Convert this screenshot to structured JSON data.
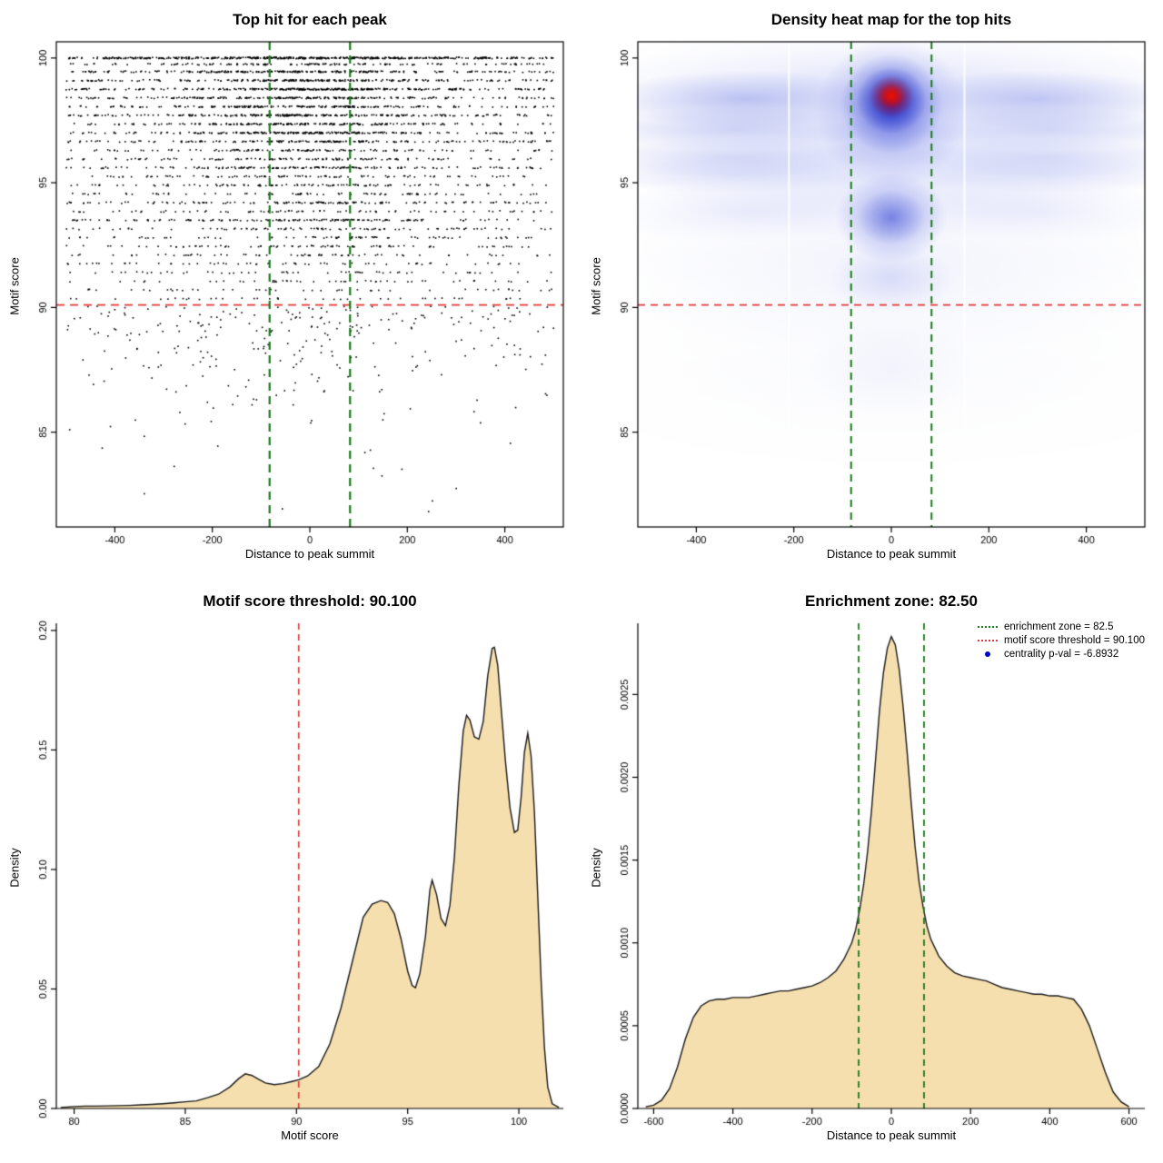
{
  "colors": {
    "background": "#ffffff",
    "point_black": "#000000",
    "red_threshold": "#e23b3b",
    "green_zone": "#1b7a1b",
    "blue_point": "#0000cd",
    "density_fill": "#f6dfae",
    "density_stroke": "#1a1a1a"
  },
  "chart_data": [
    {
      "type": "scatter",
      "title": "Top hit for each peak",
      "xlabel": "Distance to peak summit",
      "ylabel": "Motif score",
      "xlim": [
        -520,
        520
      ],
      "ylim": [
        81.2,
        100.65
      ],
      "xticks": [
        -400,
        -200,
        0,
        200,
        400
      ],
      "xtick_labels": [
        "-400",
        "-200",
        "0",
        "200",
        "400"
      ],
      "yticks": [
        85,
        90,
        95,
        100
      ],
      "ytick_labels": [
        "85",
        "90",
        "95",
        "100"
      ],
      "box": true,
      "seed": 11,
      "x_data_range": [
        -500,
        500
      ],
      "ref_lines": [
        {
          "axis": "y",
          "value": 90.1,
          "color": "red_threshold",
          "dash": [
            9,
            6
          ],
          "width": 1.9
        },
        {
          "axis": "x",
          "value": -82.5,
          "color": "green_zone",
          "dash": [
            9,
            6
          ],
          "width": 2.2
        },
        {
          "axis": "x",
          "value": 82.5,
          "color": "green_zone",
          "dash": [
            9,
            6
          ],
          "width": 2.2
        }
      ],
      "bands_columns": [
        "motif_score",
        "n_points",
        "center_weight"
      ],
      "bands": [
        [
          100.0,
          500,
          0.3
        ],
        [
          99.75,
          140,
          0.4
        ],
        [
          99.45,
          260,
          0.45
        ],
        [
          99.1,
          240,
          0.5
        ],
        [
          98.75,
          300,
          0.5
        ],
        [
          98.4,
          230,
          0.5
        ],
        [
          98.05,
          210,
          0.5
        ],
        [
          97.7,
          260,
          0.5
        ],
        [
          97.35,
          200,
          0.5
        ],
        [
          97.0,
          240,
          0.5
        ],
        [
          96.65,
          190,
          0.45
        ],
        [
          96.3,
          130,
          0.45
        ],
        [
          95.95,
          120,
          0.45
        ],
        [
          95.6,
          160,
          0.45
        ],
        [
          95.25,
          100,
          0.4
        ],
        [
          94.9,
          110,
          0.4
        ],
        [
          94.55,
          80,
          0.4
        ],
        [
          94.2,
          140,
          0.45
        ],
        [
          93.85,
          80,
          0.4
        ],
        [
          93.5,
          150,
          0.5
        ],
        [
          93.15,
          90,
          0.4
        ],
        [
          92.8,
          75,
          0.35
        ],
        [
          92.45,
          85,
          0.35
        ],
        [
          92.1,
          65,
          0.35
        ],
        [
          91.75,
          60,
          0.3
        ],
        [
          91.4,
          55,
          0.3
        ],
        [
          91.05,
          50,
          0.3
        ],
        [
          90.7,
          45,
          0.3
        ],
        [
          90.35,
          40,
          0.3
        ]
      ],
      "below_threshold": {
        "n_points": 300,
        "exp_decay": 1.9,
        "min_score": 81.6,
        "center_weight": 0.25
      }
    },
    {
      "type": "heatmap",
      "title": "Density heat map for the top hits",
      "xlabel": "Distance to peak summit",
      "ylabel": "Motif score",
      "xlim": [
        -520,
        520
      ],
      "ylim": [
        81.2,
        100.65
      ],
      "xticks": [
        -400,
        -200,
        0,
        200,
        400
      ],
      "xtick_labels": [
        "-400",
        "-200",
        "0",
        "200",
        "400"
      ],
      "yticks": [
        85,
        90,
        95,
        100
      ],
      "ytick_labels": [
        "85",
        "90",
        "95",
        "100"
      ],
      "box": true,
      "ref_lines": [
        {
          "axis": "y",
          "value": 90.1,
          "color": "red_threshold",
          "dash": [
            8,
            6
          ],
          "width": 1.6
        },
        {
          "axis": "x",
          "value": -82.5,
          "color": "green_zone",
          "dash": [
            8,
            6
          ],
          "width": 2.0
        },
        {
          "axis": "x",
          "value": 82.5,
          "color": "green_zone",
          "dash": [
            8,
            6
          ],
          "width": 2.0
        }
      ],
      "white_gap_lines_x": [
        -210,
        150
      ],
      "hotspot": {
        "x": 0,
        "y": 98.45,
        "note": "maximum density (red core)"
      },
      "blobs_columns": [
        "x",
        "y",
        "rx",
        "ry",
        "color",
        "alpha"
      ],
      "blobs": [
        [
          0,
          97.6,
          640,
          5.0,
          "#5b6ee8",
          0.1
        ],
        [
          0,
          96.6,
          640,
          3.2,
          "#5b6ee8",
          0.08
        ],
        [
          0,
          99.3,
          640,
          1.2,
          "#6b7ce8",
          0.1
        ],
        [
          -300,
          98.35,
          300,
          1.15,
          "#3b4fd8",
          0.3
        ],
        [
          300,
          98.35,
          300,
          1.15,
          "#3b4fd8",
          0.28
        ],
        [
          -320,
          97.15,
          290,
          0.85,
          "#3b4fd8",
          0.2
        ],
        [
          320,
          97.15,
          290,
          0.85,
          "#3b4fd8",
          0.18
        ],
        [
          -320,
          96.0,
          300,
          0.8,
          "#3b4fd8",
          0.16
        ],
        [
          320,
          96.0,
          300,
          0.8,
          "#3b4fd8",
          0.15
        ],
        [
          -320,
          95.3,
          300,
          0.7,
          "#4b5ee0",
          0.12
        ],
        [
          320,
          95.3,
          300,
          0.7,
          "#4b5ee0",
          0.11
        ],
        [
          0,
          95.0,
          560,
          2.2,
          "#5b6ee8",
          0.07
        ],
        [
          -300,
          93.8,
          290,
          1.2,
          "#5b6ee8",
          0.1
        ],
        [
          300,
          93.8,
          290,
          1.2,
          "#5b6ee8",
          0.09
        ],
        [
          0,
          92.4,
          600,
          2.6,
          "#6b7ce8",
          0.06
        ],
        [
          0,
          90.8,
          620,
          2.6,
          "#7b8ce8",
          0.05
        ],
        [
          0,
          88.6,
          640,
          3.0,
          "#8b9ae8",
          0.035
        ],
        [
          0,
          86.2,
          640,
          2.6,
          "#9aa8ec",
          0.022
        ],
        [
          0,
          93.6,
          115,
          1.8,
          "#2a3cd8",
          0.4
        ],
        [
          0,
          93.6,
          70,
          1.1,
          "#2233cc",
          0.32
        ],
        [
          0,
          91.2,
          130,
          1.4,
          "#4455dd",
          0.16
        ],
        [
          0,
          87.6,
          170,
          2.0,
          "#6677dd",
          0.06
        ],
        [
          0,
          97.8,
          155,
          3.0,
          "#2233d8",
          0.35
        ],
        [
          0,
          98.15,
          105,
          2.0,
          "#1122cc",
          0.55
        ],
        [
          0,
          98.3,
          72,
          1.35,
          "#0011bb",
          0.72
        ],
        [
          0,
          98.45,
          46,
          0.85,
          "#cc0000",
          0.88
        ],
        [
          0,
          98.5,
          28,
          0.5,
          "#ee1100",
          0.95
        ]
      ]
    },
    {
      "type": "density",
      "title": "Motif score threshold: 90.100",
      "xlabel": "Motif score",
      "ylabel": "Density",
      "xlim": [
        79.2,
        102.0
      ],
      "ylim": [
        0,
        0.203
      ],
      "xticks": [
        80,
        85,
        90,
        95,
        100
      ],
      "xtick_labels": [
        "80",
        "85",
        "90",
        "95",
        "100"
      ],
      "yticks": [
        0,
        0.05,
        0.1,
        0.15,
        0.2
      ],
      "ytick_labels": [
        "0.00",
        "0.05",
        "0.10",
        "0.15",
        "0.20"
      ],
      "box": false,
      "ref_lines": [
        {
          "axis": "x",
          "value": 90.1,
          "color": "red_threshold",
          "dash": [
            7,
            5
          ],
          "width": 1.7
        }
      ],
      "curve_columns": [
        "motif_score",
        "density"
      ],
      "curve": [
        [
          79.4,
          0.0004
        ],
        [
          80,
          0.0008
        ],
        [
          80.5,
          0.001
        ],
        [
          81,
          0.001
        ],
        [
          81.5,
          0.0011
        ],
        [
          82,
          0.0012
        ],
        [
          82.5,
          0.0013
        ],
        [
          83,
          0.0015
        ],
        [
          83.5,
          0.0017
        ],
        [
          84,
          0.002
        ],
        [
          84.5,
          0.0024
        ],
        [
          85,
          0.0028
        ],
        [
          85.5,
          0.0032
        ],
        [
          86,
          0.0045
        ],
        [
          86.5,
          0.006
        ],
        [
          87,
          0.009
        ],
        [
          87.4,
          0.0125
        ],
        [
          87.7,
          0.0145
        ],
        [
          88,
          0.0138
        ],
        [
          88.3,
          0.0122
        ],
        [
          88.6,
          0.0107
        ],
        [
          89,
          0.01
        ],
        [
          89.4,
          0.0104
        ],
        [
          89.8,
          0.0113
        ],
        [
          90.1,
          0.012
        ],
        [
          90.5,
          0.0136
        ],
        [
          91,
          0.0176
        ],
        [
          91.5,
          0.027
        ],
        [
          92,
          0.042
        ],
        [
          92.5,
          0.061
        ],
        [
          93,
          0.08
        ],
        [
          93.4,
          0.0855
        ],
        [
          93.8,
          0.087
        ],
        [
          94.1,
          0.0862
        ],
        [
          94.4,
          0.0815
        ],
        [
          94.7,
          0.071
        ],
        [
          95,
          0.0575
        ],
        [
          95.2,
          0.0515
        ],
        [
          95.35,
          0.0505
        ],
        [
          95.55,
          0.0565
        ],
        [
          95.8,
          0.072
        ],
        [
          96,
          0.0915
        ],
        [
          96.1,
          0.0955
        ],
        [
          96.3,
          0.0895
        ],
        [
          96.5,
          0.0795
        ],
        [
          96.7,
          0.0765
        ],
        [
          96.9,
          0.085
        ],
        [
          97.1,
          0.105
        ],
        [
          97.3,
          0.135
        ],
        [
          97.5,
          0.158
        ],
        [
          97.65,
          0.1645
        ],
        [
          97.8,
          0.1625
        ],
        [
          98,
          0.1555
        ],
        [
          98.2,
          0.1545
        ],
        [
          98.4,
          0.162
        ],
        [
          98.6,
          0.181
        ],
        [
          98.8,
          0.1925
        ],
        [
          98.9,
          0.193
        ],
        [
          99.05,
          0.1855
        ],
        [
          99.2,
          0.168
        ],
        [
          99.4,
          0.145
        ],
        [
          99.6,
          0.126
        ],
        [
          99.8,
          0.1155
        ],
        [
          99.95,
          0.1165
        ],
        [
          100.1,
          0.13
        ],
        [
          100.25,
          0.149
        ],
        [
          100.4,
          0.157
        ],
        [
          100.55,
          0.1475
        ],
        [
          100.7,
          0.124
        ],
        [
          100.85,
          0.089
        ],
        [
          101,
          0.054
        ],
        [
          101.15,
          0.0255
        ],
        [
          101.3,
          0.009
        ],
        [
          101.5,
          0.002
        ],
        [
          101.8,
          0.0004
        ]
      ]
    },
    {
      "type": "density",
      "title": "Enrichment zone: 82.50",
      "xlabel": "Distance to peak summit",
      "ylabel": "Density",
      "xlim": [
        -640,
        640
      ],
      "ylim": [
        0,
        0.00293
      ],
      "xticks": [
        -600,
        -400,
        -200,
        0,
        200,
        400,
        600
      ],
      "xtick_labels": [
        "-600",
        "-400",
        "-200",
        "0",
        "200",
        "400",
        "600"
      ],
      "yticks": [
        0,
        0.0005,
        0.001,
        0.0015,
        0.002,
        0.0025
      ],
      "ytick_labels": [
        "0.0000",
        "0.0005",
        "0.0010",
        "0.0015",
        "0.0020",
        "0.0025"
      ],
      "box": false,
      "ref_lines": [
        {
          "axis": "x",
          "value": -82.5,
          "color": "green_zone",
          "dash": [
            7,
            5
          ],
          "width": 1.8
        },
        {
          "axis": "x",
          "value": 82.5,
          "color": "green_zone",
          "dash": [
            7,
            5
          ],
          "width": 1.8
        }
      ],
      "curve_columns": [
        "distance",
        "density"
      ],
      "curve": [
        [
          -620,
          1e-05
        ],
        [
          -600,
          2e-05
        ],
        [
          -580,
          5e-05
        ],
        [
          -560,
          0.00012
        ],
        [
          -540,
          0.00025
        ],
        [
          -520,
          0.00042
        ],
        [
          -500,
          0.00055
        ],
        [
          -480,
          0.00062
        ],
        [
          -460,
          0.00065
        ],
        [
          -440,
          0.00066
        ],
        [
          -420,
          0.00066
        ],
        [
          -400,
          0.00067
        ],
        [
          -380,
          0.00067
        ],
        [
          -360,
          0.00067
        ],
        [
          -340,
          0.00068
        ],
        [
          -320,
          0.00069
        ],
        [
          -300,
          0.0007
        ],
        [
          -280,
          0.00071
        ],
        [
          -260,
          0.00071
        ],
        [
          -240,
          0.00072
        ],
        [
          -220,
          0.00073
        ],
        [
          -200,
          0.00074
        ],
        [
          -180,
          0.00076
        ],
        [
          -160,
          0.00079
        ],
        [
          -140,
          0.00083
        ],
        [
          -120,
          0.0009
        ],
        [
          -100,
          0.001
        ],
        [
          -90,
          0.00108
        ],
        [
          -80,
          0.0012
        ],
        [
          -70,
          0.00135
        ],
        [
          -60,
          0.00155
        ],
        [
          -50,
          0.0018
        ],
        [
          -40,
          0.0021
        ],
        [
          -30,
          0.0024
        ],
        [
          -20,
          0.00263
        ],
        [
          -10,
          0.00278
        ],
        [
          0,
          0.00285
        ],
        [
          10,
          0.0028
        ],
        [
          20,
          0.00265
        ],
        [
          30,
          0.00242
        ],
        [
          40,
          0.00215
        ],
        [
          50,
          0.00185
        ],
        [
          60,
          0.00158
        ],
        [
          70,
          0.00137
        ],
        [
          80,
          0.00122
        ],
        [
          90,
          0.0011
        ],
        [
          100,
          0.00102
        ],
        [
          120,
          0.00092
        ],
        [
          140,
          0.00086
        ],
        [
          160,
          0.00082
        ],
        [
          180,
          0.0008
        ],
        [
          200,
          0.00079
        ],
        [
          220,
          0.00078
        ],
        [
          240,
          0.00077
        ],
        [
          260,
          0.00075
        ],
        [
          280,
          0.00073
        ],
        [
          300,
          0.00072
        ],
        [
          320,
          0.00071
        ],
        [
          340,
          0.0007
        ],
        [
          360,
          0.00069
        ],
        [
          380,
          0.00069
        ],
        [
          400,
          0.00068
        ],
        [
          420,
          0.00068
        ],
        [
          440,
          0.00067
        ],
        [
          460,
          0.00066
        ],
        [
          480,
          0.0006
        ],
        [
          500,
          0.0005
        ],
        [
          520,
          0.00036
        ],
        [
          540,
          0.00022
        ],
        [
          560,
          0.0001
        ],
        [
          580,
          4e-05
        ],
        [
          600,
          1e-05
        ]
      ],
      "legend": [
        {
          "symbol": "dotted-line",
          "color": "green_zone",
          "label": "enrichment zone = 82.5"
        },
        {
          "symbol": "dotted-line",
          "color": "red_threshold",
          "label": "motif score threshold = 90.100"
        },
        {
          "symbol": "point",
          "color": "blue_point",
          "label": "centrality p-val = -6.8932"
        }
      ],
      "annotations": {
        "enrichment_zone": 82.5,
        "motif_score_threshold": 90.1,
        "centrality_log_pval": -6.8932
      }
    }
  ]
}
